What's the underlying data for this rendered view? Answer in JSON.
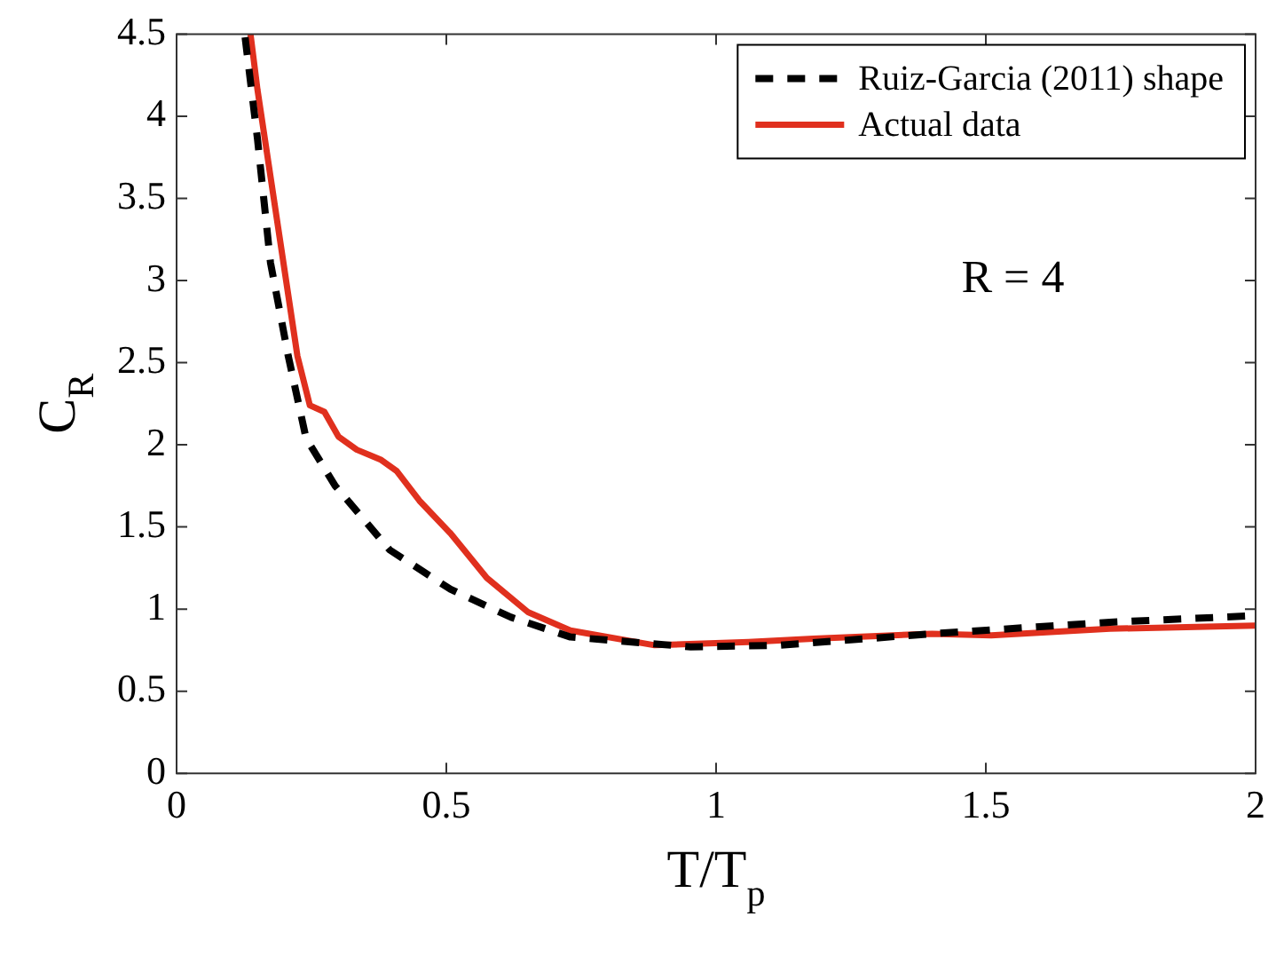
{
  "chart_data": {
    "type": "line",
    "xlabel": "T/T$_{p}$",
    "ylabel": "C$_{R}$",
    "legend": "top right",
    "grid": false,
    "marker": "none",
    "xlim": [
      0,
      2
    ],
    "xticks": [
      0,
      {
        "value": 0.5,
        "label": "0.5"
      },
      1,
      {
        "value": 1.5,
        "label": "1.5"
      },
      2
    ],
    "ylim": [
      0,
      4.5
    ],
    "yticks": [
      0,
      {
        "value": 0.5,
        "label": "0.5"
      },
      1,
      {
        "value": 1.5,
        "label": "1.5"
      },
      2,
      {
        "value": 2.5,
        "label": "2.5"
      },
      3,
      {
        "value": 3.5,
        "label": "3.5"
      },
      4,
      {
        "value": 4.5,
        "label": "4.5"
      }
    ],
    "annotations": [
      "R = 4"
    ],
    "series": [
      {
        "name": "Ruiz-Garcia (2011) shape",
        "color": "#000000",
        "line_style": "dashed",
        "x": [
          0.127,
          0.15,
          0.174,
          0.207,
          0.24,
          0.294,
          0.395,
          0.508,
          0.62,
          0.73,
          0.953,
          1.12,
          1.4,
          1.73,
          2.0
        ],
        "values": [
          4.48,
          3.86,
          3.11,
          2.54,
          2.04,
          1.75,
          1.36,
          1.12,
          0.95,
          0.83,
          0.77,
          0.78,
          0.85,
          0.92,
          0.96
        ]
      },
      {
        "name": "Actual data",
        "color": "#e0301e",
        "line_style": "solid",
        "x": [
          0.137,
          0.15,
          0.224,
          0.247,
          0.274,
          0.3,
          0.334,
          0.378,
          0.408,
          0.45,
          0.508,
          0.575,
          0.652,
          0.73,
          0.886,
          1.06,
          1.18,
          1.4,
          1.51,
          1.73,
          2.0
        ],
        "values": [
          4.5,
          4.16,
          2.54,
          2.24,
          2.2,
          2.05,
          1.97,
          1.91,
          1.84,
          1.66,
          1.46,
          1.19,
          0.98,
          0.87,
          0.78,
          0.8,
          0.82,
          0.85,
          0.84,
          0.88,
          0.9
        ]
      }
    ]
  }
}
